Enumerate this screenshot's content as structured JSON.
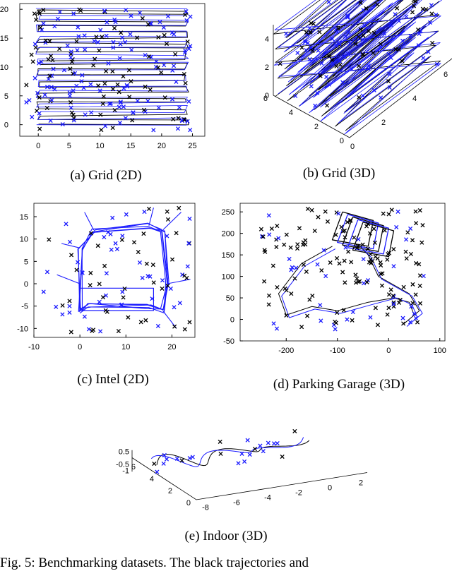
{
  "colors": {
    "black": "#000000",
    "blue": "#1a1aff"
  },
  "captions": {
    "a": "(a) Grid (2D)",
    "b": "(b) Grid (3D)",
    "c": "(c) Intel (2D)",
    "d": "(d) Parking Garage (3D)",
    "e": "(e) Indoor (3D)"
  },
  "figure_caption": "Fig. 5: Benchmarking datasets. The black trajectories and",
  "chart_data": [
    {
      "id": "a",
      "type": "scatter",
      "title": "",
      "xlabel": "",
      "ylabel": "",
      "xlim": [
        -3,
        27
      ],
      "ylim": [
        -2,
        21
      ],
      "x_ticks": [
        "0",
        "5",
        "10",
        "15",
        "20",
        "25"
      ],
      "y_ticks": [
        "0",
        "5",
        "10",
        "15",
        "20"
      ],
      "series": [
        {
          "color": "black"
        },
        {
          "color": "blue"
        }
      ]
    },
    {
      "id": "b",
      "type": "scatter",
      "z_ticks": [
        "0",
        "2",
        "4"
      ],
      "y_ticks": [
        "0",
        "2",
        "4",
        "6"
      ],
      "x_ticks": [
        "0",
        "2",
        "4",
        "6"
      ],
      "series": [
        {
          "color": "black"
        },
        {
          "color": "blue"
        }
      ]
    },
    {
      "id": "c",
      "type": "scatter",
      "xlim": [
        -10,
        25
      ],
      "ylim": [
        -12,
        18
      ],
      "x_ticks": [
        "-10",
        "0",
        "10",
        "20"
      ],
      "y_ticks": [
        "15",
        "10",
        "5",
        "0",
        "-5",
        "-10"
      ],
      "series": [
        {
          "color": "blue"
        },
        {
          "color": "black"
        }
      ]
    },
    {
      "id": "d",
      "type": "scatter",
      "xlim": [
        -290,
        110
      ],
      "ylim": [
        -50,
        270
      ],
      "x_ticks": [
        "-200",
        "-100",
        "0",
        "100"
      ],
      "y_ticks": [
        "250",
        "200",
        "150",
        "100",
        "50",
        "0",
        "-50"
      ],
      "series": [
        {
          "color": "black"
        },
        {
          "color": "blue"
        }
      ]
    },
    {
      "id": "e",
      "type": "scatter",
      "z_ticks": [
        "0.5",
        "-0.5",
        "-1"
      ],
      "y_ticks": [
        "6",
        "4",
        "2",
        "0"
      ],
      "x_ticks": [
        "-8",
        "-6",
        "-4",
        "-2",
        "0",
        "2"
      ],
      "series": [
        {
          "color": "black"
        },
        {
          "color": "blue"
        }
      ]
    }
  ]
}
